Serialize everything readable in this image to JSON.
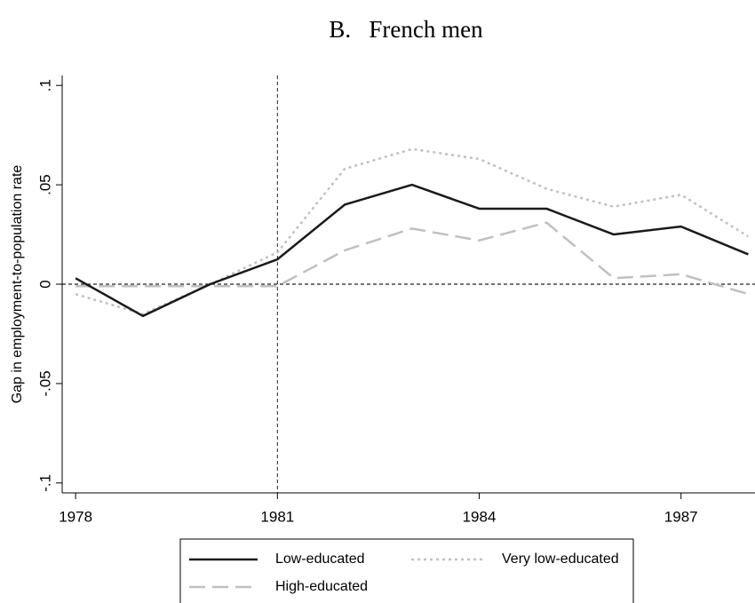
{
  "chart_data": {
    "type": "line",
    "title": "B.   French men",
    "y_label": "Gap in employment-to-population rate",
    "x": [
      1978,
      1979,
      1980,
      1981,
      1982,
      1983,
      1984,
      1985,
      1986,
      1987,
      1988
    ],
    "series": [
      {
        "name": "Low-educated",
        "color": "#1a1a1a",
        "style": "solid",
        "values": [
          0.003,
          -0.016,
          0.0,
          0.0125,
          0.04,
          0.05,
          0.038,
          0.038,
          0.025,
          0.029,
          0.015
        ]
      },
      {
        "name": "Very low-educated",
        "color": "#c0c0c0",
        "style": "dotted",
        "values": [
          -0.005,
          -0.015,
          0.0,
          0.016,
          0.058,
          0.068,
          0.063,
          0.048,
          0.039,
          0.045,
          0.024
        ]
      },
      {
        "name": "High-educated",
        "color": "#c0c0c0",
        "style": "dashed",
        "values": [
          -0.001,
          -0.001,
          -0.001,
          -0.001,
          0.017,
          0.028,
          0.022,
          0.031,
          0.003,
          0.005,
          -0.005
        ]
      }
    ],
    "xlim": [
      1977.8,
      1988.1
    ],
    "ylim": [
      -0.105,
      0.105
    ],
    "xticks": [
      1978,
      1981,
      1984,
      1987
    ],
    "yticks": [
      {
        "value": -0.1,
        "label": "-.1"
      },
      {
        "value": -0.05,
        "label": "-.05"
      },
      0,
      {
        "value": 0.05,
        "label": ".05"
      },
      {
        "value": 0.1,
        "label": ".1"
      }
    ],
    "vline": 1981,
    "hline": 0
  }
}
